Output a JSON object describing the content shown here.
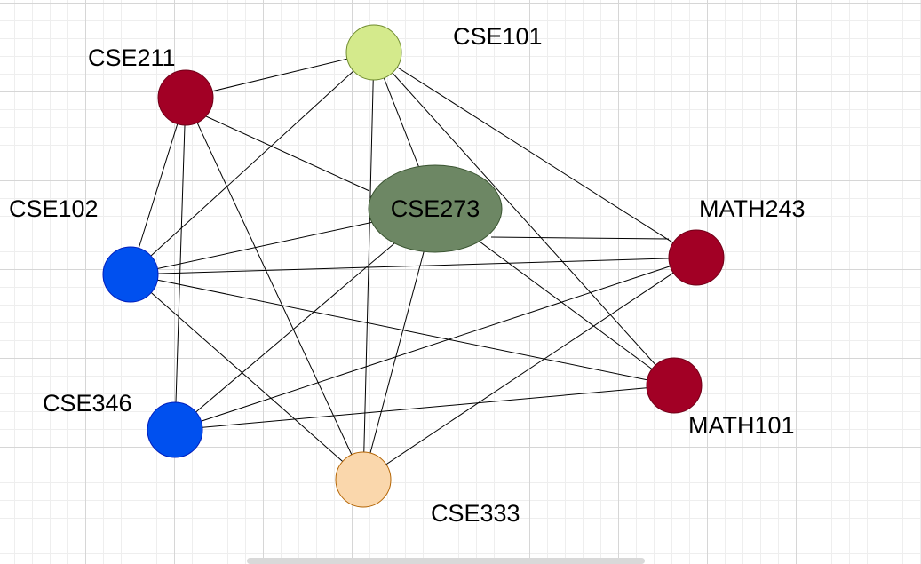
{
  "diagram": {
    "nodes": [
      {
        "id": "CSE101",
        "label": "CSE101",
        "fill": "#d4ea8c",
        "stroke": "#6e8a2e"
      },
      {
        "id": "CSE211",
        "label": "CSE211",
        "fill": "#a20025",
        "stroke": "#6f0018"
      },
      {
        "id": "CSE102",
        "label": "CSE102",
        "fill": "#0050ef",
        "stroke": "#001dbc"
      },
      {
        "id": "CSE273",
        "label": "CSE273",
        "fill": "#6d8764",
        "stroke": "#3a5431"
      },
      {
        "id": "MATH243",
        "label": "MATH243",
        "fill": "#a20025",
        "stroke": "#6f0018"
      },
      {
        "id": "MATH101",
        "label": "MATH101",
        "fill": "#a20025",
        "stroke": "#6f0018"
      },
      {
        "id": "CSE346",
        "label": "CSE346",
        "fill": "#0050ef",
        "stroke": "#001dbc"
      },
      {
        "id": "CSE333",
        "label": "CSE333",
        "fill": "#fad7ac",
        "stroke": "#b46504"
      }
    ],
    "edges": [
      [
        "CSE211",
        "CSE101"
      ],
      [
        "CSE211",
        "CSE102"
      ],
      [
        "CSE211",
        "CSE346"
      ],
      [
        "CSE211",
        "CSE273"
      ],
      [
        "CSE211",
        "CSE333"
      ],
      [
        "CSE101",
        "CSE102"
      ],
      [
        "CSE101",
        "CSE273"
      ],
      [
        "CSE101",
        "CSE333"
      ],
      [
        "CSE101",
        "MATH243"
      ],
      [
        "CSE101",
        "MATH101"
      ],
      [
        "CSE102",
        "CSE273"
      ],
      [
        "CSE102",
        "MATH243"
      ],
      [
        "CSE102",
        "MATH101"
      ],
      [
        "CSE102",
        "CSE333"
      ],
      [
        "CSE273",
        "MATH243"
      ],
      [
        "CSE273",
        "MATH101"
      ],
      [
        "CSE273",
        "CSE346"
      ],
      [
        "CSE273",
        "CSE333"
      ],
      [
        "CSE346",
        "MATH243"
      ],
      [
        "CSE346",
        "MATH101"
      ],
      [
        "CSE333",
        "MATH243"
      ]
    ]
  }
}
